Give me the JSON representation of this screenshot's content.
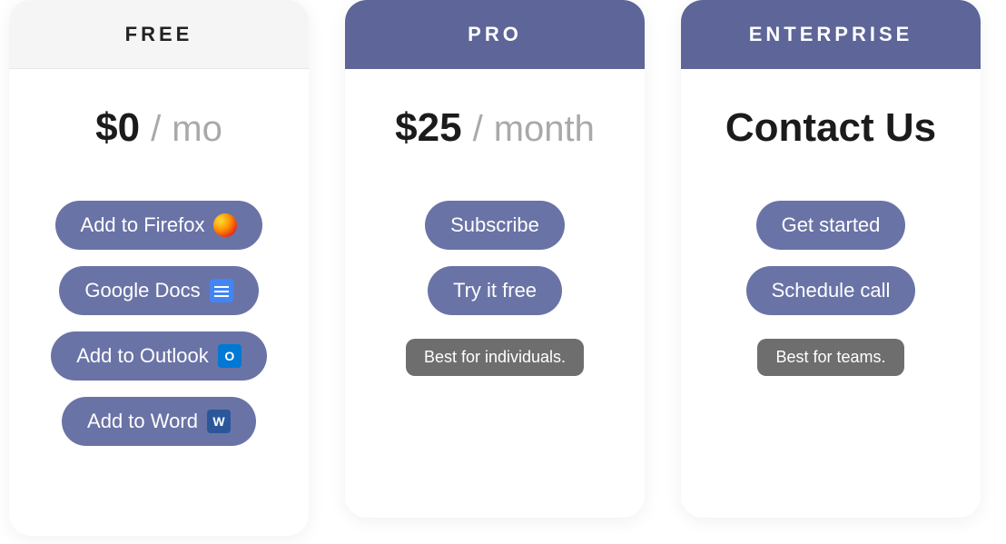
{
  "colors": {
    "header_accent": "#5d6599",
    "pill": "#6a73a6",
    "badge": "#6e6e6e",
    "free_header_bg": "#f5f5f5",
    "text_dark": "#1b1b1b",
    "text_muted": "#a9a9a9",
    "card_bg": "#ffffff"
  },
  "plans": {
    "free": {
      "title": "FREE",
      "price": "$0",
      "separator": "/",
      "period": "mo",
      "buttons": [
        {
          "label": "Add to Firefox",
          "icon": "firefox"
        },
        {
          "label": "Google Docs",
          "icon": "gdocs"
        },
        {
          "label": "Add to Outlook",
          "icon": "outlook"
        },
        {
          "label": "Add to Word",
          "icon": "word"
        }
      ]
    },
    "pro": {
      "title": "PRO",
      "price": "$25",
      "separator": "/",
      "period": "month",
      "buttons": [
        {
          "label": "Subscribe"
        },
        {
          "label": "Try it free"
        }
      ],
      "badge": "Best for individuals."
    },
    "enterprise": {
      "title": "ENTERPRISE",
      "headline": "Contact Us",
      "buttons": [
        {
          "label": "Get started"
        },
        {
          "label": "Schedule call"
        }
      ],
      "badge": "Best for teams."
    }
  }
}
